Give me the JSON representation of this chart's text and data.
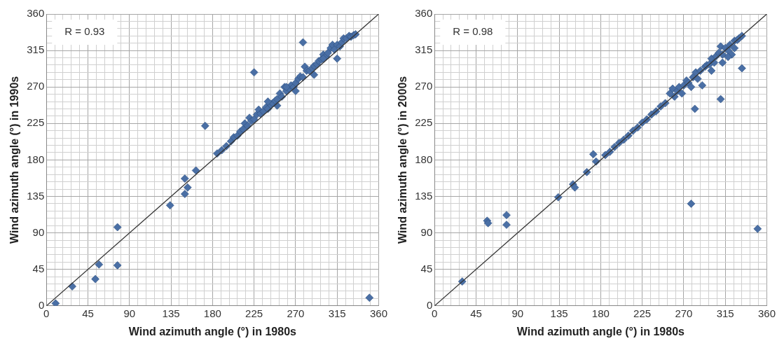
{
  "chart_data": [
    {
      "type": "scatter",
      "xlabel": "Wind azimuth angle (°) in 1980s",
      "ylabel": "Wind azimuth angle (°) in 1990s",
      "annotations": [
        "R = 0.93"
      ],
      "xlim": [
        0,
        360
      ],
      "ylim": [
        0,
        360
      ],
      "xticks": [
        0,
        {
          "value": 9,
          "label": null
        },
        {
          "value": 18,
          "label": null
        },
        {
          "value": 27,
          "label": null
        },
        {
          "value": 36,
          "label": null
        },
        45,
        {
          "value": 54,
          "label": null
        },
        {
          "value": 63,
          "label": null
        },
        {
          "value": 72,
          "label": null
        },
        {
          "value": 81,
          "label": null
        },
        90,
        {
          "value": 99,
          "label": null
        },
        {
          "value": 108,
          "label": null
        },
        {
          "value": 117,
          "label": null
        },
        {
          "value": 126,
          "label": null
        },
        135,
        {
          "value": 144,
          "label": null
        },
        {
          "value": 153,
          "label": null
        },
        {
          "value": 162,
          "label": null
        },
        {
          "value": 171,
          "label": null
        },
        180,
        {
          "value": 189,
          "label": null
        },
        {
          "value": 198,
          "label": null
        },
        {
          "value": 207,
          "label": null
        },
        {
          "value": 216,
          "label": null
        },
        225,
        {
          "value": 234,
          "label": null
        },
        {
          "value": 243,
          "label": null
        },
        {
          "value": 252,
          "label": null
        },
        {
          "value": 261,
          "label": null
        },
        270,
        {
          "value": 279,
          "label": null
        },
        {
          "value": 288,
          "label": null
        },
        {
          "value": 297,
          "label": null
        },
        {
          "value": 306,
          "label": null
        },
        315,
        {
          "value": 324,
          "label": null
        },
        {
          "value": 333,
          "label": null
        },
        {
          "value": 342,
          "label": null
        },
        {
          "value": 351,
          "label": null
        },
        360
      ],
      "yticks": [
        0,
        {
          "value": 9,
          "label": null
        },
        {
          "value": 18,
          "label": null
        },
        {
          "value": 27,
          "label": null
        },
        {
          "value": 36,
          "label": null
        },
        45,
        {
          "value": 54,
          "label": null
        },
        {
          "value": 63,
          "label": null
        },
        {
          "value": 72,
          "label": null
        },
        {
          "value": 81,
          "label": null
        },
        90,
        {
          "value": 99,
          "label": null
        },
        {
          "value": 108,
          "label": null
        },
        {
          "value": 117,
          "label": null
        },
        {
          "value": 126,
          "label": null
        },
        135,
        {
          "value": 144,
          "label": null
        },
        {
          "value": 153,
          "label": null
        },
        {
          "value": 162,
          "label": null
        },
        {
          "value": 171,
          "label": null
        },
        180,
        {
          "value": 189,
          "label": null
        },
        {
          "value": 198,
          "label": null
        },
        {
          "value": 207,
          "label": null
        },
        {
          "value": 216,
          "label": null
        },
        225,
        {
          "value": 234,
          "label": null
        },
        {
          "value": 243,
          "label": null
        },
        {
          "value": 252,
          "label": null
        },
        {
          "value": 261,
          "label": null
        },
        270,
        {
          "value": 279,
          "label": null
        },
        {
          "value": 288,
          "label": null
        },
        {
          "value": 297,
          "label": null
        },
        {
          "value": 306,
          "label": null
        },
        315,
        {
          "value": 324,
          "label": null
        },
        {
          "value": 333,
          "label": null
        },
        {
          "value": 342,
          "label": null
        },
        {
          "value": 351,
          "label": null
        },
        360
      ],
      "grid": true,
      "legend": false,
      "series": [
        {
          "marker": "diamond",
          "color": "#4a6fa5",
          "x": [
            10,
            28,
            53,
            57,
            77,
            77,
            134,
            150,
            153,
            150,
            162,
            172,
            225,
            278,
            350,
            185,
            190,
            195,
            200,
            203,
            207,
            210,
            213,
            215,
            218,
            220,
            222,
            225,
            228,
            230,
            232,
            235,
            238,
            240,
            243,
            245,
            248,
            250,
            253,
            255,
            258,
            260,
            263,
            265,
            268,
            270,
            273,
            275,
            278,
            280,
            282,
            285,
            288,
            290,
            293,
            295,
            298,
            300,
            303,
            305,
            308,
            310,
            312,
            315,
            318,
            320,
            322,
            325,
            328,
            330,
            333,
            335,
            240,
            260,
            300,
            315,
            290,
            270,
            250
          ],
          "values": [
            3,
            24,
            33,
            51,
            50,
            97,
            124,
            138,
            146,
            157,
            167,
            222,
            288,
            325,
            10,
            188,
            192,
            197,
            203,
            208,
            210,
            215,
            218,
            225,
            222,
            232,
            228,
            230,
            236,
            242,
            237,
            240,
            245,
            243,
            248,
            250,
            253,
            255,
            262,
            258,
            270,
            265,
            268,
            272,
            270,
            275,
            280,
            283,
            282,
            295,
            290,
            290,
            293,
            296,
            298,
            302,
            304,
            310,
            308,
            312,
            318,
            322,
            316,
            322,
            320,
            325,
            330,
            330,
            333,
            332,
            334,
            335,
            252,
            270,
            305,
            305,
            285,
            265,
            247
          ]
        },
        {
          "type": "line",
          "color": "#333333",
          "line_style": "solid",
          "x": [
            0,
            360
          ],
          "values": [
            0,
            360
          ]
        }
      ]
    },
    {
      "type": "scatter",
      "xlabel": "Wind azimuth angle (°) in 1980s",
      "ylabel": "Wind azimuth angle (°) in 2000s",
      "annotations": [
        "R = 0.98"
      ],
      "xlim": [
        0,
        360
      ],
      "ylim": [
        0,
        360
      ],
      "xticks": [
        0,
        {
          "value": 9,
          "label": null
        },
        {
          "value": 18,
          "label": null
        },
        {
          "value": 27,
          "label": null
        },
        {
          "value": 36,
          "label": null
        },
        45,
        {
          "value": 54,
          "label": null
        },
        {
          "value": 63,
          "label": null
        },
        {
          "value": 72,
          "label": null
        },
        {
          "value": 81,
          "label": null
        },
        90,
        {
          "value": 99,
          "label": null
        },
        {
          "value": 108,
          "label": null
        },
        {
          "value": 117,
          "label": null
        },
        {
          "value": 126,
          "label": null
        },
        135,
        {
          "value": 144,
          "label": null
        },
        {
          "value": 153,
          "label": null
        },
        {
          "value": 162,
          "label": null
        },
        {
          "value": 171,
          "label": null
        },
        180,
        {
          "value": 189,
          "label": null
        },
        {
          "value": 198,
          "label": null
        },
        {
          "value": 207,
          "label": null
        },
        {
          "value": 216,
          "label": null
        },
        225,
        {
          "value": 234,
          "label": null
        },
        {
          "value": 243,
          "label": null
        },
        {
          "value": 252,
          "label": null
        },
        {
          "value": 261,
          "label": null
        },
        270,
        {
          "value": 279,
          "label": null
        },
        {
          "value": 288,
          "label": null
        },
        {
          "value": 297,
          "label": null
        },
        {
          "value": 306,
          "label": null
        },
        315,
        {
          "value": 324,
          "label": null
        },
        {
          "value": 333,
          "label": null
        },
        {
          "value": 342,
          "label": null
        },
        {
          "value": 351,
          "label": null
        },
        360
      ],
      "yticks": [
        0,
        {
          "value": 9,
          "label": null
        },
        {
          "value": 18,
          "label": null
        },
        {
          "value": 27,
          "label": null
        },
        {
          "value": 36,
          "label": null
        },
        45,
        {
          "value": 54,
          "label": null
        },
        {
          "value": 63,
          "label": null
        },
        {
          "value": 72,
          "label": null
        },
        {
          "value": 81,
          "label": null
        },
        90,
        {
          "value": 99,
          "label": null
        },
        {
          "value": 108,
          "label": null
        },
        {
          "value": 117,
          "label": null
        },
        {
          "value": 126,
          "label": null
        },
        135,
        {
          "value": 144,
          "label": null
        },
        {
          "value": 153,
          "label": null
        },
        {
          "value": 162,
          "label": null
        },
        {
          "value": 171,
          "label": null
        },
        180,
        {
          "value": 189,
          "label": null
        },
        {
          "value": 198,
          "label": null
        },
        {
          "value": 207,
          "label": null
        },
        {
          "value": 216,
          "label": null
        },
        225,
        {
          "value": 234,
          "label": null
        },
        {
          "value": 243,
          "label": null
        },
        {
          "value": 252,
          "label": null
        },
        {
          "value": 261,
          "label": null
        },
        270,
        {
          "value": 279,
          "label": null
        },
        {
          "value": 288,
          "label": null
        },
        {
          "value": 297,
          "label": null
        },
        {
          "value": 306,
          "label": null
        },
        315,
        {
          "value": 324,
          "label": null
        },
        {
          "value": 333,
          "label": null
        },
        {
          "value": 342,
          "label": null
        },
        {
          "value": 351,
          "label": null
        },
        360
      ],
      "grid": true,
      "legend": false,
      "series": [
        {
          "marker": "diamond",
          "color": "#4a6fa5",
          "x": [
            30,
            57,
            58,
            78,
            78,
            134,
            150,
            152,
            165,
            172,
            175,
            278,
            282,
            310,
            333,
            350,
            185,
            190,
            195,
            200,
            205,
            210,
            215,
            220,
            225,
            230,
            235,
            240,
            245,
            250,
            255,
            258,
            260,
            263,
            265,
            268,
            270,
            273,
            275,
            278,
            280,
            283,
            285,
            288,
            290,
            293,
            295,
            298,
            300,
            303,
            305,
            308,
            310,
            312,
            315,
            318,
            320,
            322,
            325,
            328,
            330,
            333,
            312,
            300,
            318,
            325
          ],
          "values": [
            30,
            105,
            102,
            112,
            100,
            134,
            150,
            146,
            165,
            187,
            178,
            126,
            243,
            255,
            293,
            95,
            186,
            190,
            196,
            201,
            205,
            210,
            216,
            220,
            226,
            230,
            236,
            240,
            246,
            250,
            262,
            268,
            258,
            265,
            270,
            262,
            272,
            278,
            275,
            270,
            282,
            288,
            280,
            290,
            272,
            295,
            297,
            298,
            305,
            300,
            308,
            312,
            320,
            310,
            318,
            315,
            322,
            310,
            327,
            328,
            330,
            333,
            300,
            290,
            307,
            318
          ]
        },
        {
          "type": "line",
          "color": "#333333",
          "line_style": "solid",
          "x": [
            0,
            360
          ],
          "values": [
            0,
            360
          ]
        }
      ]
    }
  ]
}
